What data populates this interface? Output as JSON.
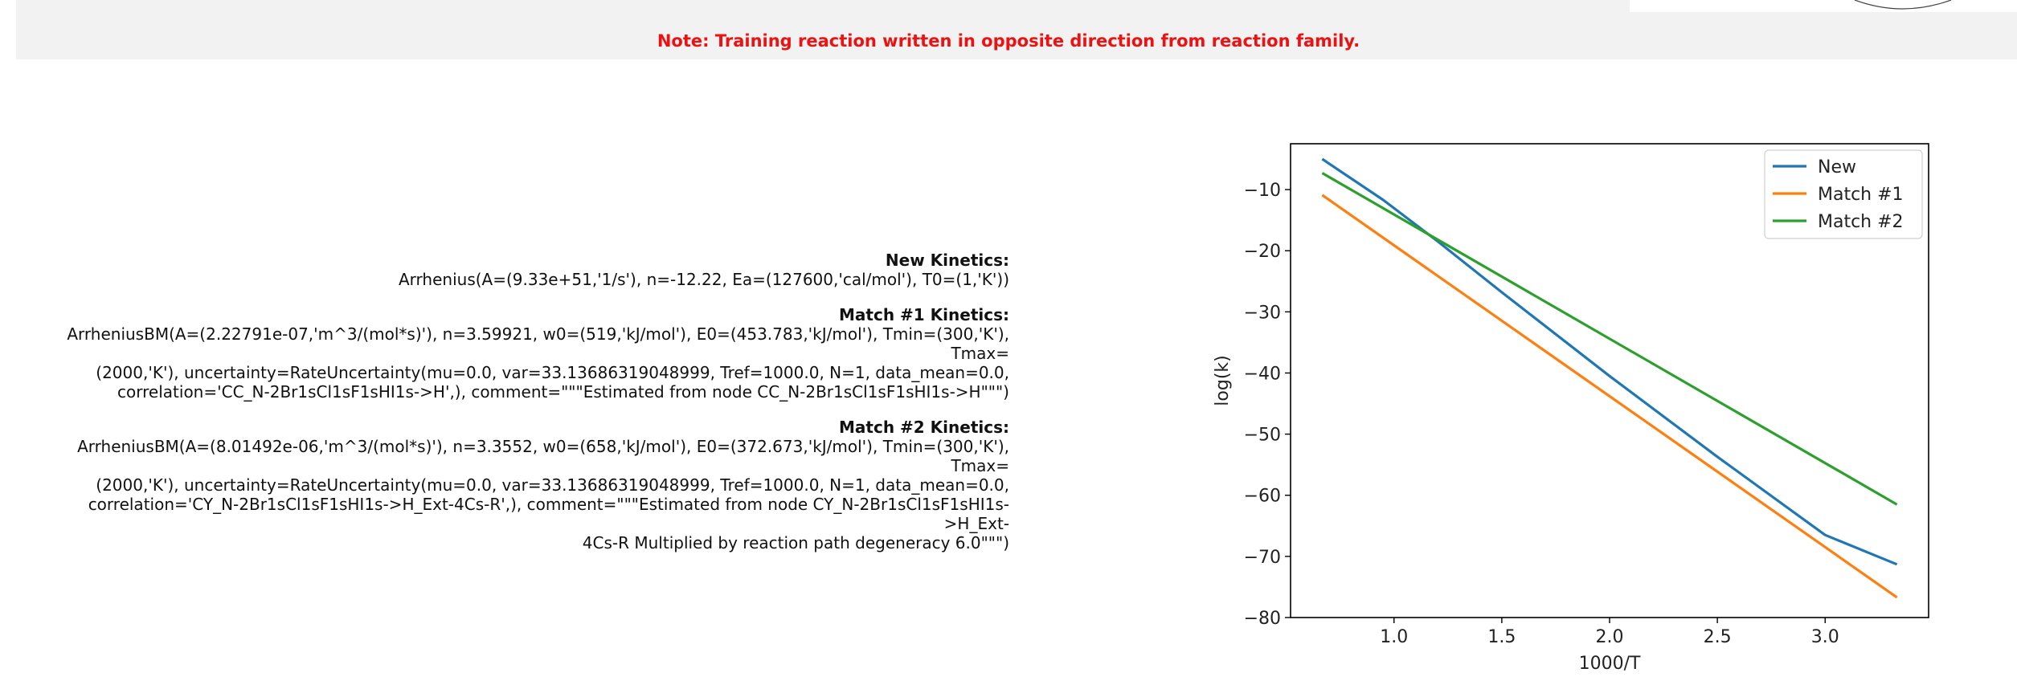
{
  "note": "Note: Training reaction written in opposite direction from reaction family.",
  "kinetics": [
    {
      "title": "New Kinetics:",
      "lines": [
        "Arrhenius(A=(9.33e+51,'1/s'), n=-12.22, Ea=(127600,'cal/mol'), T0=(1,'K'))"
      ]
    },
    {
      "title": "Match #1 Kinetics:",
      "lines": [
        "ArrheniusBM(A=(2.22791e-07,'m^3/(mol*s)'), n=3.59921, w0=(519,'kJ/mol'), E0=(453.783,'kJ/mol'), Tmin=(300,'K'), Tmax=",
        "(2000,'K'), uncertainty=RateUncertainty(mu=0.0, var=33.13686319048999, Tref=1000.0, N=1, data_mean=0.0,",
        "correlation='CC_N-2Br1sCl1sF1sHI1s->H',), comment=\"\"\"Estimated from node CC_N-2Br1sCl1sF1sHI1s->H\"\"\")"
      ]
    },
    {
      "title": "Match #2 Kinetics:",
      "lines": [
        "ArrheniusBM(A=(8.01492e-06,'m^3/(mol*s)'), n=3.3552, w0=(658,'kJ/mol'), E0=(372.673,'kJ/mol'), Tmin=(300,'K'), Tmax=",
        "(2000,'K'), uncertainty=RateUncertainty(mu=0.0, var=33.13686319048999, Tref=1000.0, N=1, data_mean=0.0,",
        "correlation='CY_N-2Br1sCl1sF1sHI1s->H_Ext-4Cs-R',), comment=\"\"\"Estimated from node CY_N-2Br1sCl1sF1sHI1s->H_Ext-",
        "4Cs-R Multiplied by reaction path degeneracy 6.0\"\"\")"
      ]
    }
  ],
  "chart_data": {
    "type": "line",
    "title": "",
    "xlabel": "1000/T",
    "ylabel": "log(k)",
    "xlim": [
      0.52,
      3.48
    ],
    "ylim": [
      -80,
      -2.5
    ],
    "xticks": [
      1.0,
      1.5,
      2.0,
      2.5,
      3.0
    ],
    "xtick_labels": [
      "1.0",
      "1.5",
      "2.0",
      "2.5",
      "3.0"
    ],
    "yticks": [
      -10,
      -20,
      -30,
      -40,
      -50,
      -60,
      -70,
      -80
    ],
    "ytick_labels": [
      "−10",
      "−20",
      "−30",
      "−40",
      "−50",
      "−60",
      "−70",
      "−80"
    ],
    "legend": "top-right",
    "grid": false,
    "series": [
      {
        "name": "New",
        "color": "#1f77b4",
        "x": [
          0.667,
          0.95,
          1.2,
          1.5,
          2.0,
          2.5,
          3.0,
          3.333
        ],
        "y": [
          -5.0,
          -11.7,
          -18.4,
          -26.8,
          -40.5,
          -53.7,
          -66.5,
          -71.3
        ]
      },
      {
        "name": "Match #1",
        "color": "#ff7f0e",
        "x": [
          0.667,
          3.333
        ],
        "y": [
          -10.9,
          -76.7
        ]
      },
      {
        "name": "Match #2",
        "color": "#2ca02c",
        "x": [
          0.667,
          3.333
        ],
        "y": [
          -7.3,
          -61.5
        ]
      }
    ]
  }
}
